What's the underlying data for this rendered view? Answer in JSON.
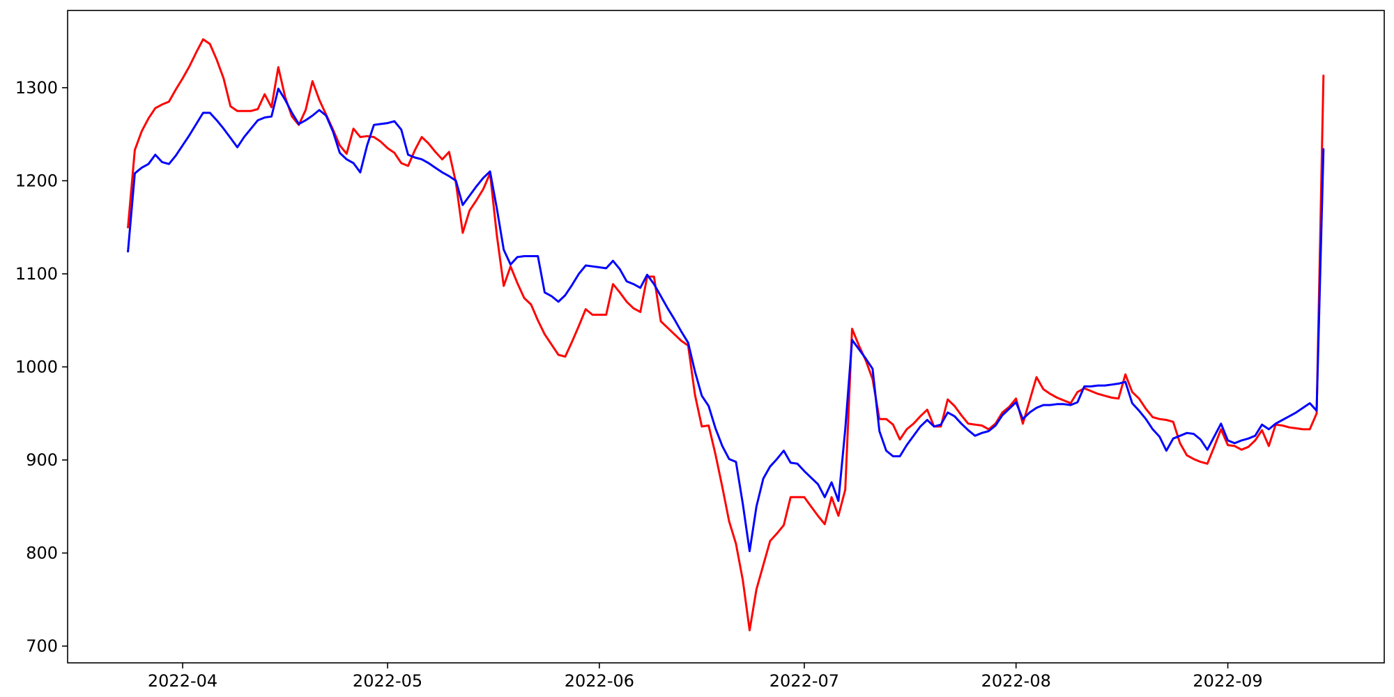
{
  "figure": {
    "background": "#ffffff",
    "spine_color": "#000000",
    "tick_color": "#000000",
    "label_color": "#000000"
  },
  "chart_data": {
    "type": "line",
    "title": "",
    "xlabel": "",
    "ylabel": "",
    "grid": false,
    "legend": null,
    "x_axis": {
      "start_date": "2022-03-24",
      "n_points": 176,
      "tick_labels": [
        "2022-04",
        "2022-05",
        "2022-06",
        "2022-07",
        "2022-08",
        "2022-09"
      ],
      "tick_day_offsets": [
        8,
        38,
        69,
        99,
        130,
        161
      ],
      "xlim_day_offsets": [
        -8.84,
        183.9
      ]
    },
    "y_axis": {
      "tick_labels": [
        "700",
        "800",
        "900",
        "1000",
        "1100",
        "1200",
        "1300"
      ],
      "tick_values": [
        700,
        800,
        900,
        1000,
        1100,
        1200,
        1300
      ],
      "ylim": [
        682,
        1383
      ]
    },
    "series": [
      {
        "name": "red-series",
        "color": "#ff0000",
        "values": [
          1150,
          1233,
          1253,
          1267,
          1278,
          1282,
          1285,
          1298,
          1310,
          1323,
          1338,
          1352,
          1347,
          1330,
          1310,
          1280,
          1275,
          1275,
          1275,
          1277,
          1293,
          1279,
          1322,
          1290,
          1269,
          1260,
          1276,
          1307,
          1287,
          1271,
          1255,
          1238,
          1229,
          1256,
          1247,
          1248,
          1247,
          1242,
          1235,
          1230,
          1219,
          1216,
          1233,
          1247,
          1240,
          1231,
          1223,
          1231,
          1198,
          1144,
          1168,
          1179,
          1191,
          1208,
          1141,
          1087,
          1108,
          1090,
          1074,
          1067,
          1050,
          1035,
          1024,
          1013,
          1011,
          1027,
          1044,
          1062,
          1056,
          1056,
          1056,
          1089,
          1080,
          1070,
          1063,
          1059,
          1097,
          1097,
          1049,
          1042,
          1035,
          1028,
          1023,
          970,
          936,
          937,
          906,
          871,
          834,
          810,
          771,
          717,
          761,
          787,
          813,
          821,
          830,
          860,
          860,
          860,
          850,
          840,
          831,
          860,
          840,
          868,
          1041,
          1023,
          1007,
          987,
          944,
          944,
          938,
          922,
          933,
          939,
          947,
          954,
          936,
          936,
          965,
          958,
          948,
          939,
          938,
          937,
          933,
          939,
          951,
          957,
          966,
          939,
          964,
          989,
          976,
          971,
          967,
          964,
          961,
          973,
          977,
          974,
          971,
          969,
          967,
          966,
          992,
          973,
          966,
          955,
          946,
          944,
          943,
          941,
          918,
          905,
          901,
          898,
          896,
          914,
          933,
          916,
          915,
          911,
          914,
          921,
          932,
          915,
          938,
          937,
          935,
          934,
          933,
          933,
          950,
          1313
        ]
      },
      {
        "name": "blue-series",
        "color": "#0000ff",
        "values": [
          1124,
          1208,
          1214,
          1218,
          1228,
          1220,
          1218,
          1227,
          1238,
          1249,
          1261,
          1273,
          1273,
          1265,
          1256,
          1246,
          1236,
          1247,
          1256,
          1265,
          1268,
          1269,
          1299,
          1287,
          1273,
          1261,
          1265,
          1270,
          1276,
          1270,
          1253,
          1230,
          1223,
          1219,
          1209,
          1238,
          1260,
          1261,
          1262,
          1264,
          1255,
          1228,
          1225,
          1223,
          1219,
          1214,
          1209,
          1205,
          1200,
          1174,
          1184,
          1194,
          1203,
          1210,
          1170,
          1126,
          1110,
          1118,
          1119,
          1119,
          1119,
          1080,
          1076,
          1070,
          1077,
          1088,
          1100,
          1109,
          1108,
          1107,
          1106,
          1114,
          1105,
          1092,
          1089,
          1085,
          1099,
          1089,
          1076,
          1063,
          1051,
          1038,
          1026,
          995,
          969,
          958,
          934,
          915,
          901,
          898,
          853,
          802,
          850,
          880,
          893,
          901,
          910,
          897,
          896,
          888,
          881,
          874,
          860,
          876,
          856,
          933,
          1029,
          1019,
          1009,
          998,
          931,
          910,
          904,
          904,
          916,
          926,
          936,
          943,
          936,
          938,
          951,
          947,
          939,
          932,
          926,
          929,
          931,
          937,
          948,
          955,
          962,
          944,
          951,
          956,
          959,
          959,
          960,
          960,
          959,
          962,
          979,
          979,
          980,
          980,
          981,
          982,
          984,
          961,
          953,
          944,
          933,
          925,
          910,
          923,
          926,
          929,
          928,
          922,
          911,
          925,
          939,
          921,
          918,
          921,
          923,
          926,
          938,
          933,
          939,
          943,
          947,
          951,
          956,
          961,
          953,
          1234
        ]
      }
    ]
  }
}
